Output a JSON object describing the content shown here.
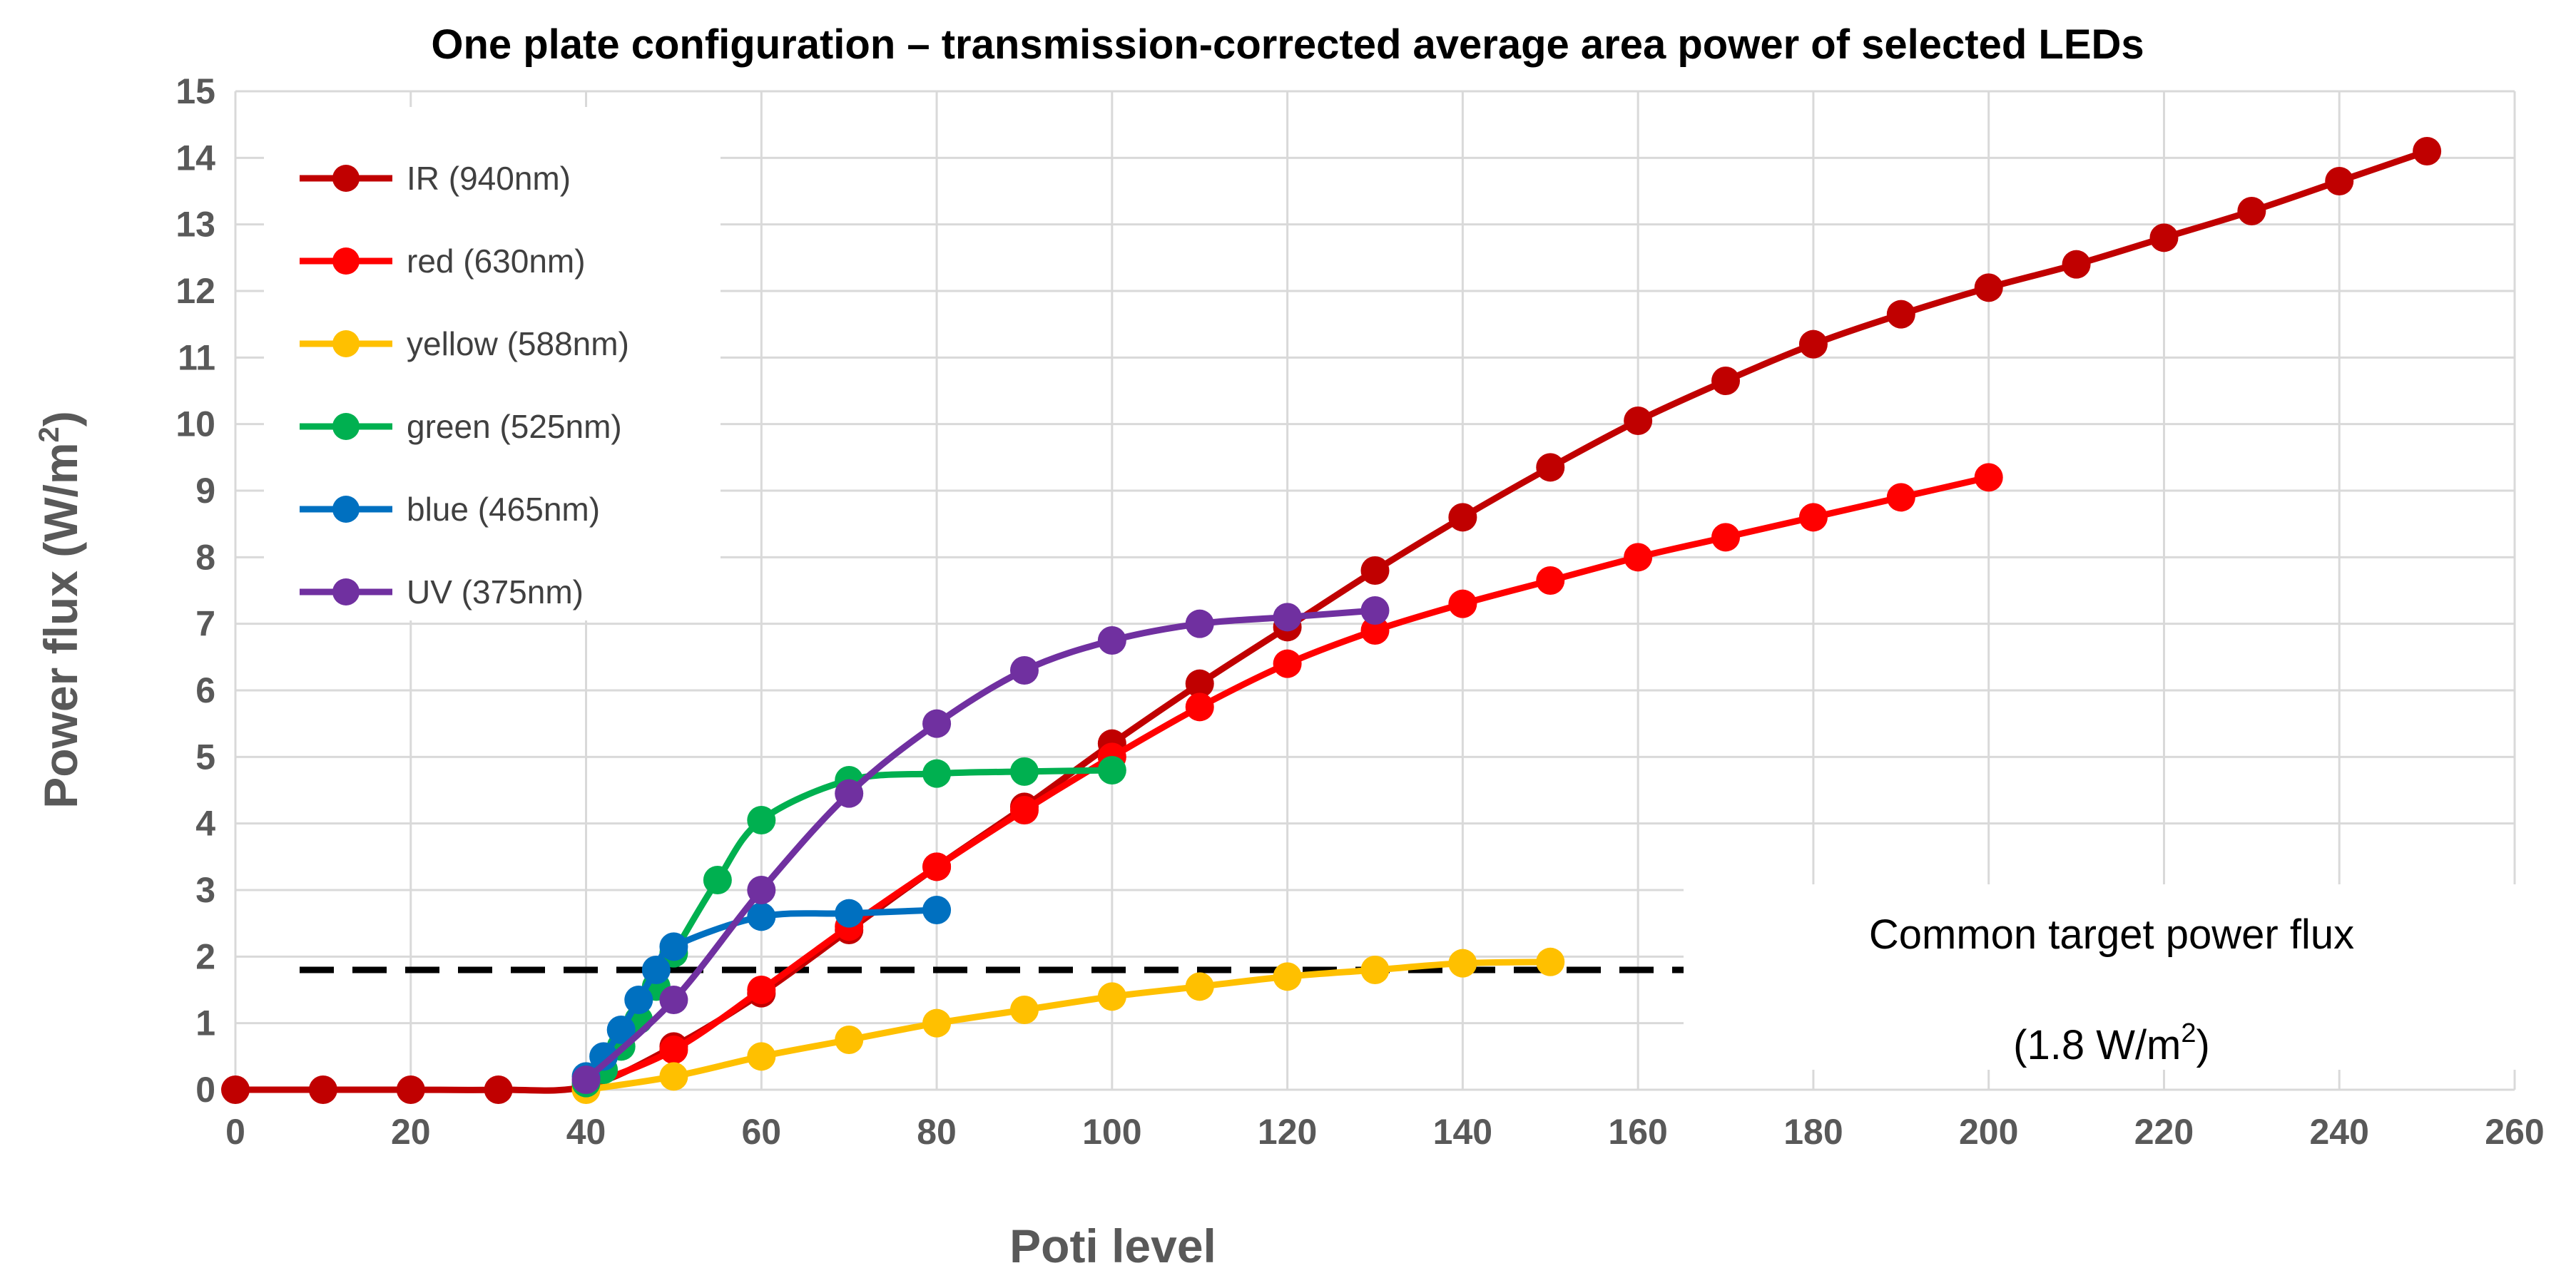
{
  "chart_data": {
    "type": "line",
    "title": "One plate configuration – transmission-corrected average area power of selected LEDs",
    "xlabel": "Poti level",
    "ylabel_main": "Power flux (W/m",
    "ylabel_sup": "2",
    "ylabel_close": ")",
    "xlim": [
      0,
      260
    ],
    "ylim": [
      0,
      15
    ],
    "x_ticks": [
      0,
      20,
      40,
      60,
      80,
      100,
      120,
      140,
      160,
      180,
      200,
      220,
      240,
      260
    ],
    "y_ticks": [
      0,
      1,
      2,
      3,
      4,
      5,
      6,
      7,
      8,
      9,
      10,
      11,
      12,
      13,
      14,
      15
    ],
    "x_tick_labels": [
      "0",
      "20",
      "40",
      "60",
      "80",
      "100",
      "120",
      "140",
      "160",
      "180",
      "200",
      "220",
      "240",
      "260"
    ],
    "y_tick_labels": [
      "0",
      "1",
      "2",
      "3",
      "4",
      "5",
      "6",
      "7",
      "8",
      "9",
      "10",
      "11",
      "12",
      "13",
      "14",
      "15"
    ],
    "grid": true,
    "legend_position": "top-left",
    "series": [
      {
        "name": "IR (940nm)",
        "color": "#c00000",
        "x": [
          0,
          10,
          20,
          30,
          40,
          50,
          60,
          70,
          80,
          90,
          100,
          110,
          120,
          130,
          140,
          150,
          160,
          170,
          180,
          190,
          200,
          210,
          220,
          230,
          240,
          250
        ],
        "y": [
          0,
          0,
          0,
          0,
          0.05,
          0.65,
          1.45,
          2.4,
          3.35,
          4.25,
          5.2,
          6.1,
          6.95,
          7.8,
          8.6,
          9.35,
          10.05,
          10.65,
          11.2,
          11.65,
          12.05,
          12.4,
          12.8,
          13.2,
          13.65,
          14.1
        ]
      },
      {
        "name": "red (630nm)",
        "color": "#ff0000",
        "x": [
          40,
          50,
          60,
          70,
          80,
          90,
          100,
          110,
          120,
          130,
          140,
          150,
          160,
          170,
          180,
          190,
          200
        ],
        "y": [
          0.05,
          0.6,
          1.5,
          2.45,
          3.35,
          4.2,
          5.0,
          5.75,
          6.4,
          6.9,
          7.3,
          7.65,
          8.0,
          8.3,
          8.6,
          8.9,
          9.2
        ]
      },
      {
        "name": "yellow (588nm)",
        "color": "#ffc000",
        "x": [
          40,
          50,
          60,
          70,
          80,
          90,
          100,
          110,
          120,
          130,
          140,
          150
        ],
        "y": [
          0.0,
          0.2,
          0.5,
          0.75,
          1.0,
          1.2,
          1.4,
          1.55,
          1.7,
          1.8,
          1.9,
          1.92
        ]
      },
      {
        "name": "green (525nm)",
        "color": "#00b050",
        "x": [
          40,
          42,
          44,
          46,
          48,
          50,
          55,
          60,
          70,
          80,
          90,
          100
        ],
        "y": [
          0.1,
          0.3,
          0.65,
          1.05,
          1.55,
          2.05,
          3.15,
          4.05,
          4.65,
          4.75,
          4.78,
          4.8
        ]
      },
      {
        "name": "blue (465nm)",
        "color": "#0070c0",
        "x": [
          40,
          42,
          44,
          46,
          48,
          50,
          60,
          70,
          80
        ],
        "y": [
          0.2,
          0.5,
          0.9,
          1.35,
          1.8,
          2.15,
          2.6,
          2.65,
          2.7
        ]
      },
      {
        "name": "UV (375nm)",
        "color": "#7030a0",
        "x": [
          40,
          50,
          60,
          70,
          80,
          90,
          100,
          110,
          120,
          130
        ],
        "y": [
          0.15,
          1.35,
          3.0,
          4.45,
          5.5,
          6.3,
          6.75,
          7.0,
          7.1,
          7.2
        ]
      }
    ],
    "reference_line": {
      "y": 1.8,
      "color": "#000000",
      "label_line1": "Common target power flux",
      "label_line2_main": "(1.8 W/m",
      "label_line2_sup": "2",
      "label_line2_close": ")"
    }
  }
}
